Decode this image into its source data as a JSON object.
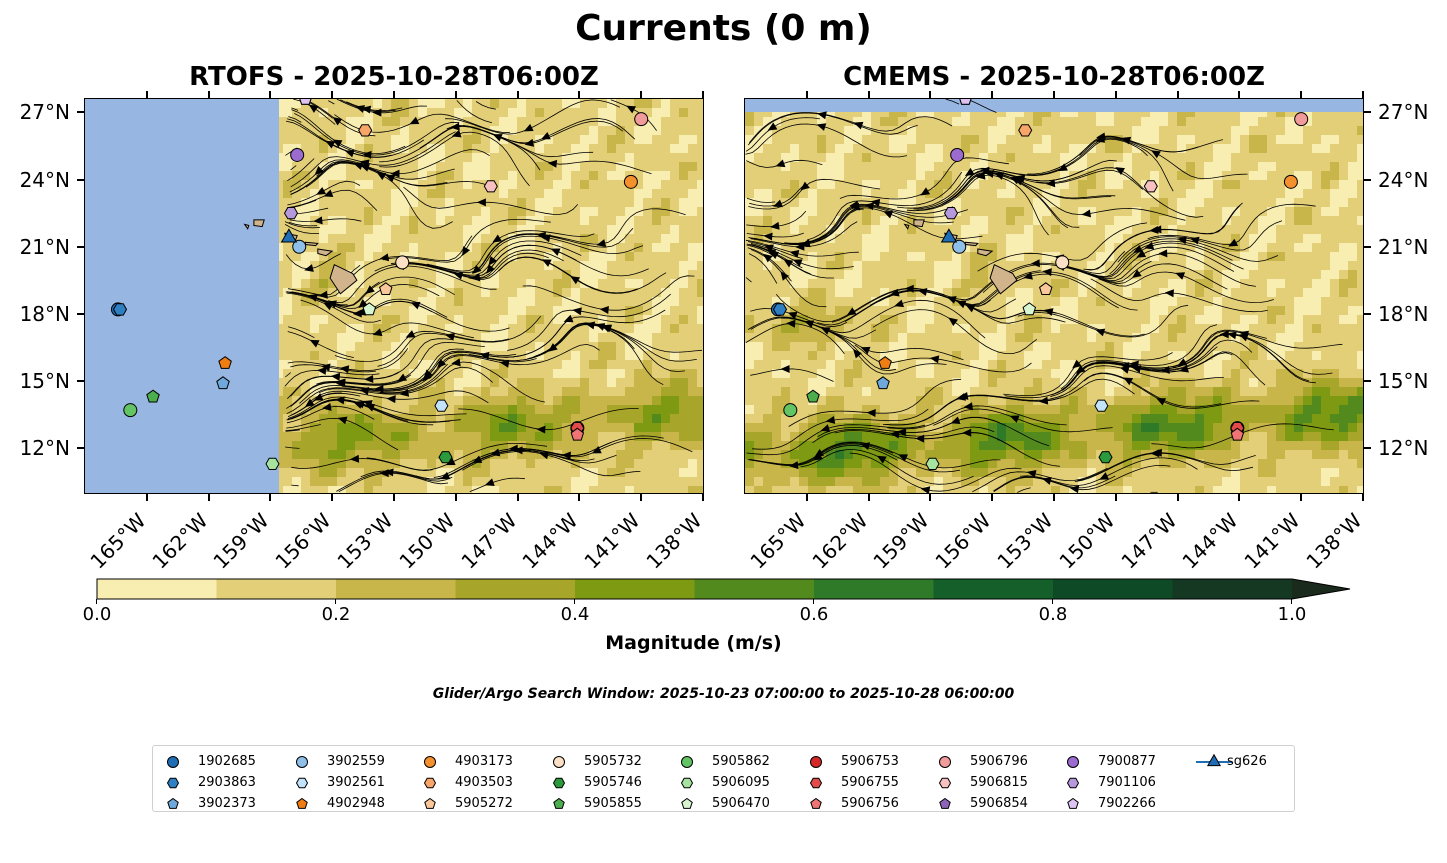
{
  "title": "Currents (0 m)",
  "chart_data": [
    {
      "type": "heatmap",
      "title": "RTOFS - 2025-10-28T06:00Z",
      "variable": "current speed with streamlines",
      "xlim": [
        -168,
        -138
      ],
      "ylim": [
        10,
        27.6
      ],
      "land_ocean_mask_west_of": -158.5,
      "x_ticks": [
        "165°W",
        "162°W",
        "159°W",
        "156°W",
        "153°W",
        "150°W",
        "147°W",
        "144°W",
        "141°W",
        "138°W"
      ],
      "y_ticks": [
        "27°N",
        "24°N",
        "21°N",
        "18°N",
        "15°N",
        "12°N"
      ]
    },
    {
      "type": "heatmap",
      "title": "CMEMS - 2025-10-28T06:00Z",
      "variable": "current speed with streamlines",
      "xlim": [
        -168,
        -138
      ],
      "ylim": [
        10,
        27.6
      ],
      "x_ticks": [
        "165°W",
        "162°W",
        "159°W",
        "156°W",
        "153°W",
        "150°W",
        "147°W",
        "144°W",
        "141°W",
        "138°W"
      ],
      "y_ticks": [
        "27°N",
        "24°N",
        "21°N",
        "18°N",
        "15°N",
        "12°N"
      ]
    }
  ],
  "colorbar": {
    "label": "Magnitude (m/s)",
    "ticks": [
      "0.0",
      "0.2",
      "0.4",
      "0.6",
      "0.8",
      "1.0"
    ],
    "range": [
      0.0,
      1.0
    ],
    "levels": [
      0,
      0.1,
      0.2,
      0.3,
      0.4,
      0.5,
      0.6,
      0.7,
      0.8,
      0.9,
      1.0
    ],
    "colors": [
      "#f8eeb2",
      "#e3cf78",
      "#c9b64a",
      "#a8a62a",
      "#7e9a12",
      "#538a1e",
      "#2f7a28",
      "#155f2a",
      "#0d4a25",
      "#153822"
    ],
    "extend_color": "#1a2a1c"
  },
  "search_window": "Glider/Argo Search Window: 2025-10-23 07:00:00 to 2025-10-28 06:00:00",
  "platforms": [
    {
      "id": "1902685",
      "marker": "circle",
      "color": "#1f6eb5",
      "lon": -166.4,
      "lat": 18.2
    },
    {
      "id": "2903863",
      "marker": "hexagon",
      "color": "#2e80c2",
      "lon": -166.3,
      "lat": 18.2
    },
    {
      "id": "3902373",
      "marker": "pentagon",
      "color": "#6ea8dc",
      "lon": -161.3,
      "lat": 14.9
    },
    {
      "id": "3902559",
      "marker": "circle",
      "color": "#8fc0ea",
      "lon": -157.6,
      "lat": 21.0
    },
    {
      "id": "3902561",
      "marker": "hexagon",
      "color": "#c3e2fb",
      "lon": -150.7,
      "lat": 13.9
    },
    {
      "id": "4902948",
      "marker": "pentagon",
      "color": "#f07d12",
      "lon": -161.2,
      "lat": 15.8
    },
    {
      "id": "4903173",
      "marker": "circle",
      "color": "#f5902e",
      "lon": -141.5,
      "lat": 23.9
    },
    {
      "id": "4903503",
      "marker": "hexagon",
      "color": "#f8a56a",
      "lon": -154.4,
      "lat": 26.2
    },
    {
      "id": "5905272",
      "marker": "pentagon",
      "color": "#fac89b",
      "lon": -153.4,
      "lat": 19.1
    },
    {
      "id": "5905732",
      "marker": "circle",
      "color": "#fbe0c6",
      "lon": -152.6,
      "lat": 20.3
    },
    {
      "id": "5905746",
      "marker": "hexagon",
      "color": "#2a9a3c",
      "lon": -150.5,
      "lat": 11.6
    },
    {
      "id": "5905855",
      "marker": "pentagon",
      "color": "#4cae4c",
      "lon": -164.7,
      "lat": 14.3
    },
    {
      "id": "5905862",
      "marker": "circle",
      "color": "#63c463",
      "lon": -165.8,
      "lat": 13.7
    },
    {
      "id": "5906095",
      "marker": "hexagon",
      "color": "#a6e3a0",
      "lon": -158.9,
      "lat": 11.3
    },
    {
      "id": "5906470",
      "marker": "pentagon",
      "color": "#d6f5d0",
      "lon": -154.2,
      "lat": 18.2
    },
    {
      "id": "5906753",
      "marker": "circle",
      "color": "#d62728",
      "lon": -144.1,
      "lat": 12.9
    },
    {
      "id": "5906755",
      "marker": "hexagon",
      "color": "#e34a4a",
      "lon": -144.1,
      "lat": 12.9
    },
    {
      "id": "5906756",
      "marker": "pentagon",
      "color": "#ef7474",
      "lon": -144.1,
      "lat": 12.6
    },
    {
      "id": "5906796",
      "marker": "circle",
      "color": "#f29b9b",
      "lon": -141.0,
      "lat": 26.7
    },
    {
      "id": "5906815",
      "marker": "hexagon",
      "color": "#f7c1c1",
      "lon": -148.3,
      "lat": 23.7
    },
    {
      "id": "5906854",
      "marker": "pentagon",
      "color": "#8e64b8",
      "lon": -157.3,
      "lat": 27.6
    },
    {
      "id": "7900877",
      "marker": "circle",
      "color": "#9b6bcf",
      "lon": -157.7,
      "lat": 25.1
    },
    {
      "id": "7901106",
      "marker": "hexagon",
      "color": "#b698dc",
      "lon": -158.0,
      "lat": 22.5
    },
    {
      "id": "7902266",
      "marker": "pentagon",
      "color": "#dcc3f2",
      "lon": -157.3,
      "lat": 27.6
    },
    {
      "id": "sg626",
      "marker": "triangle",
      "color": "#1f6eb5",
      "lon": -158.1,
      "lat": 21.4
    }
  ],
  "colors": {
    "land_mask": "#97b6e1",
    "islands": "#d2b48c",
    "coastline": "#000000",
    "streamline": "#000000"
  }
}
